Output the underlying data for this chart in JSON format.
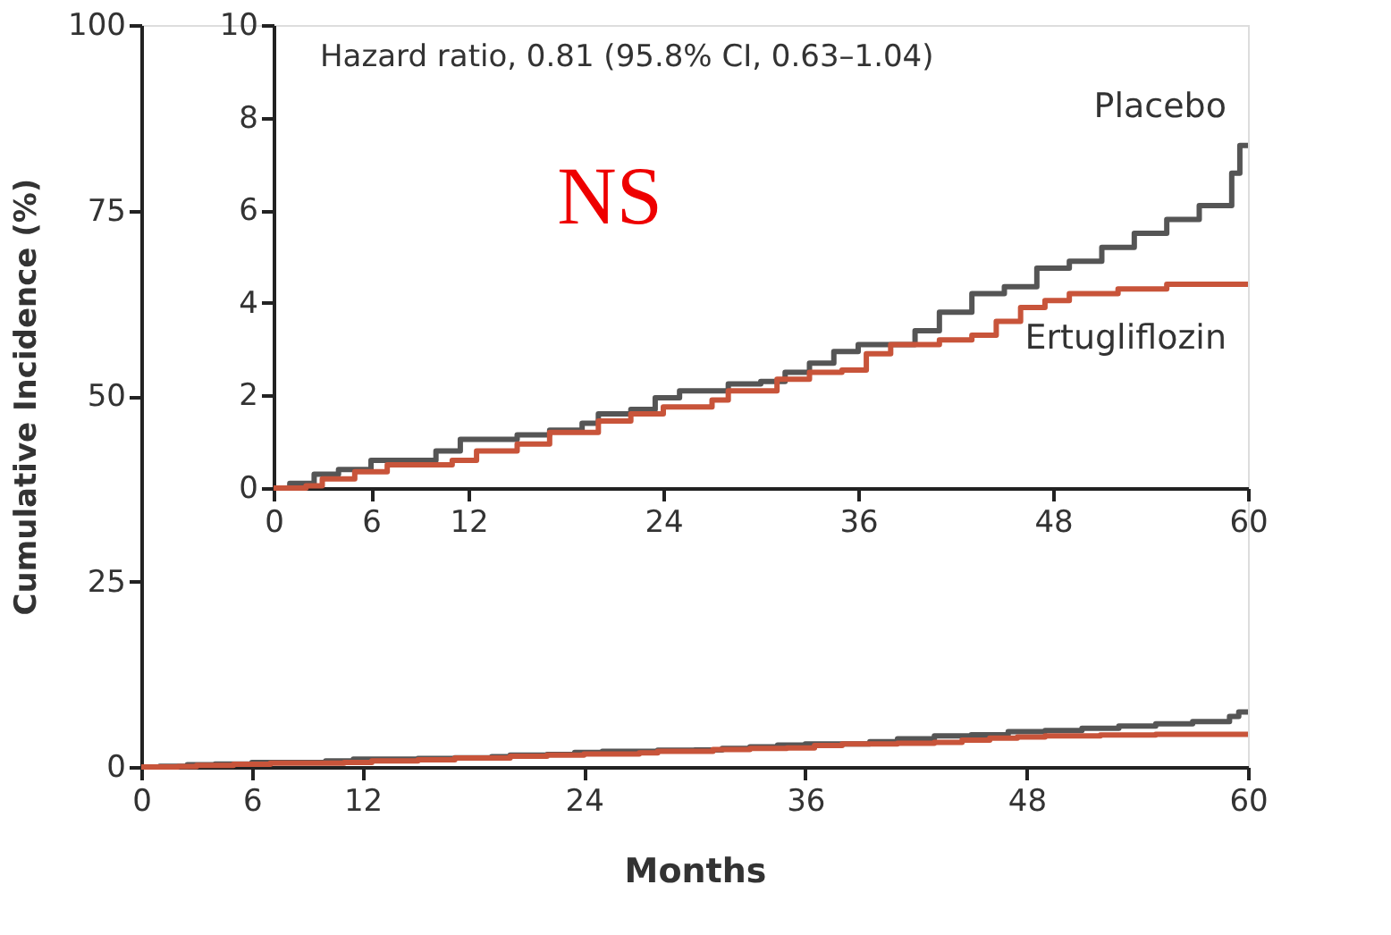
{
  "chart_data": [
    {
      "type": "step",
      "xlabel": "Months",
      "ylabel": "Cumulative Incidence (%)",
      "xlim": [
        0,
        60
      ],
      "xticks": [
        0,
        6,
        12,
        24,
        36,
        48,
        60
      ],
      "ylim": [
        0,
        100
      ],
      "yticks": [
        0,
        25,
        50,
        75,
        100
      ],
      "grid": false,
      "marker": "none",
      "line_style": "solid",
      "series": [
        {
          "color": "#555555",
          "x": [
            0,
            1,
            2.5,
            4,
            6,
            10,
            11.5,
            15,
            17,
            19,
            20,
            22,
            23.5,
            25,
            28,
            30,
            31.5,
            33,
            34.5,
            36,
            38,
            39.5,
            41,
            43,
            45,
            47,
            49,
            51,
            53,
            55,
            57,
            58.5,
            59,
            59.5,
            60
          ],
          "values": [
            0,
            0.1,
            0.3,
            0.4,
            0.6,
            0.8,
            1.05,
            1.15,
            1.25,
            1.4,
            1.6,
            1.7,
            1.95,
            2.1,
            2.25,
            2.3,
            2.5,
            2.7,
            2.95,
            3.1,
            3.1,
            3.4,
            3.8,
            4.2,
            4.35,
            4.75,
            4.9,
            5.2,
            5.5,
            5.8,
            6.1,
            6.1,
            6.8,
            7.4,
            7.4
          ]
        },
        {
          "color": "#c8543a",
          "x": [
            0,
            2,
            3,
            5,
            7,
            11,
            12.5,
            15,
            17,
            20,
            22,
            24,
            27,
            28,
            31,
            33,
            35,
            36.5,
            38,
            41,
            43,
            44.5,
            46,
            47.5,
            49,
            52,
            55,
            60
          ],
          "values": [
            0,
            0.05,
            0.2,
            0.35,
            0.5,
            0.6,
            0.8,
            0.95,
            1.2,
            1.45,
            1.6,
            1.75,
            1.9,
            2.1,
            2.35,
            2.5,
            2.55,
            2.9,
            3.1,
            3.2,
            3.3,
            3.6,
            3.9,
            4.05,
            4.2,
            4.3,
            4.4,
            4.4
          ]
        }
      ]
    },
    {
      "type": "step",
      "annotations": [
        "Hazard ratio, 0.81 (95.8% CI, 0.63–1.04)",
        "NS"
      ],
      "xlim": [
        0,
        60
      ],
      "xticks": [
        0,
        6,
        12,
        24,
        36,
        48,
        60
      ],
      "ylim": [
        0,
        10
      ],
      "yticks": [
        0,
        2,
        4,
        6,
        8,
        10
      ],
      "grid": false,
      "marker": "none",
      "line_style": "solid",
      "series": [
        {
          "name": "Placebo",
          "color": "#555555",
          "x": [
            0,
            1,
            2.5,
            4,
            6,
            10,
            11.5,
            15,
            17,
            19,
            20,
            22,
            23.5,
            25,
            28,
            30,
            31.5,
            33,
            34.5,
            36,
            38,
            39.5,
            41,
            43,
            45,
            47,
            49,
            51,
            53,
            55,
            57,
            58.5,
            59,
            59.5,
            60
          ],
          "values": [
            0,
            0.1,
            0.3,
            0.4,
            0.6,
            0.8,
            1.05,
            1.15,
            1.25,
            1.4,
            1.6,
            1.7,
            1.95,
            2.1,
            2.25,
            2.3,
            2.5,
            2.7,
            2.95,
            3.1,
            3.1,
            3.4,
            3.8,
            4.2,
            4.35,
            4.75,
            4.9,
            5.2,
            5.5,
            5.8,
            6.1,
            6.1,
            6.8,
            7.4,
            7.4
          ]
        },
        {
          "name": "Ertugliflozin",
          "color": "#c8543a",
          "x": [
            0,
            2,
            3,
            5,
            7,
            11,
            12.5,
            15,
            17,
            20,
            22,
            24,
            27,
            28,
            31,
            33,
            35,
            36.5,
            38,
            41,
            43,
            44.5,
            46,
            47.5,
            49,
            52,
            55,
            60
          ],
          "values": [
            0,
            0.05,
            0.2,
            0.35,
            0.5,
            0.6,
            0.8,
            0.95,
            1.2,
            1.45,
            1.6,
            1.75,
            1.9,
            2.1,
            2.35,
            2.5,
            2.55,
            2.9,
            3.1,
            3.2,
            3.3,
            3.6,
            3.9,
            4.05,
            4.2,
            4.3,
            4.4,
            4.4
          ]
        }
      ]
    }
  ]
}
